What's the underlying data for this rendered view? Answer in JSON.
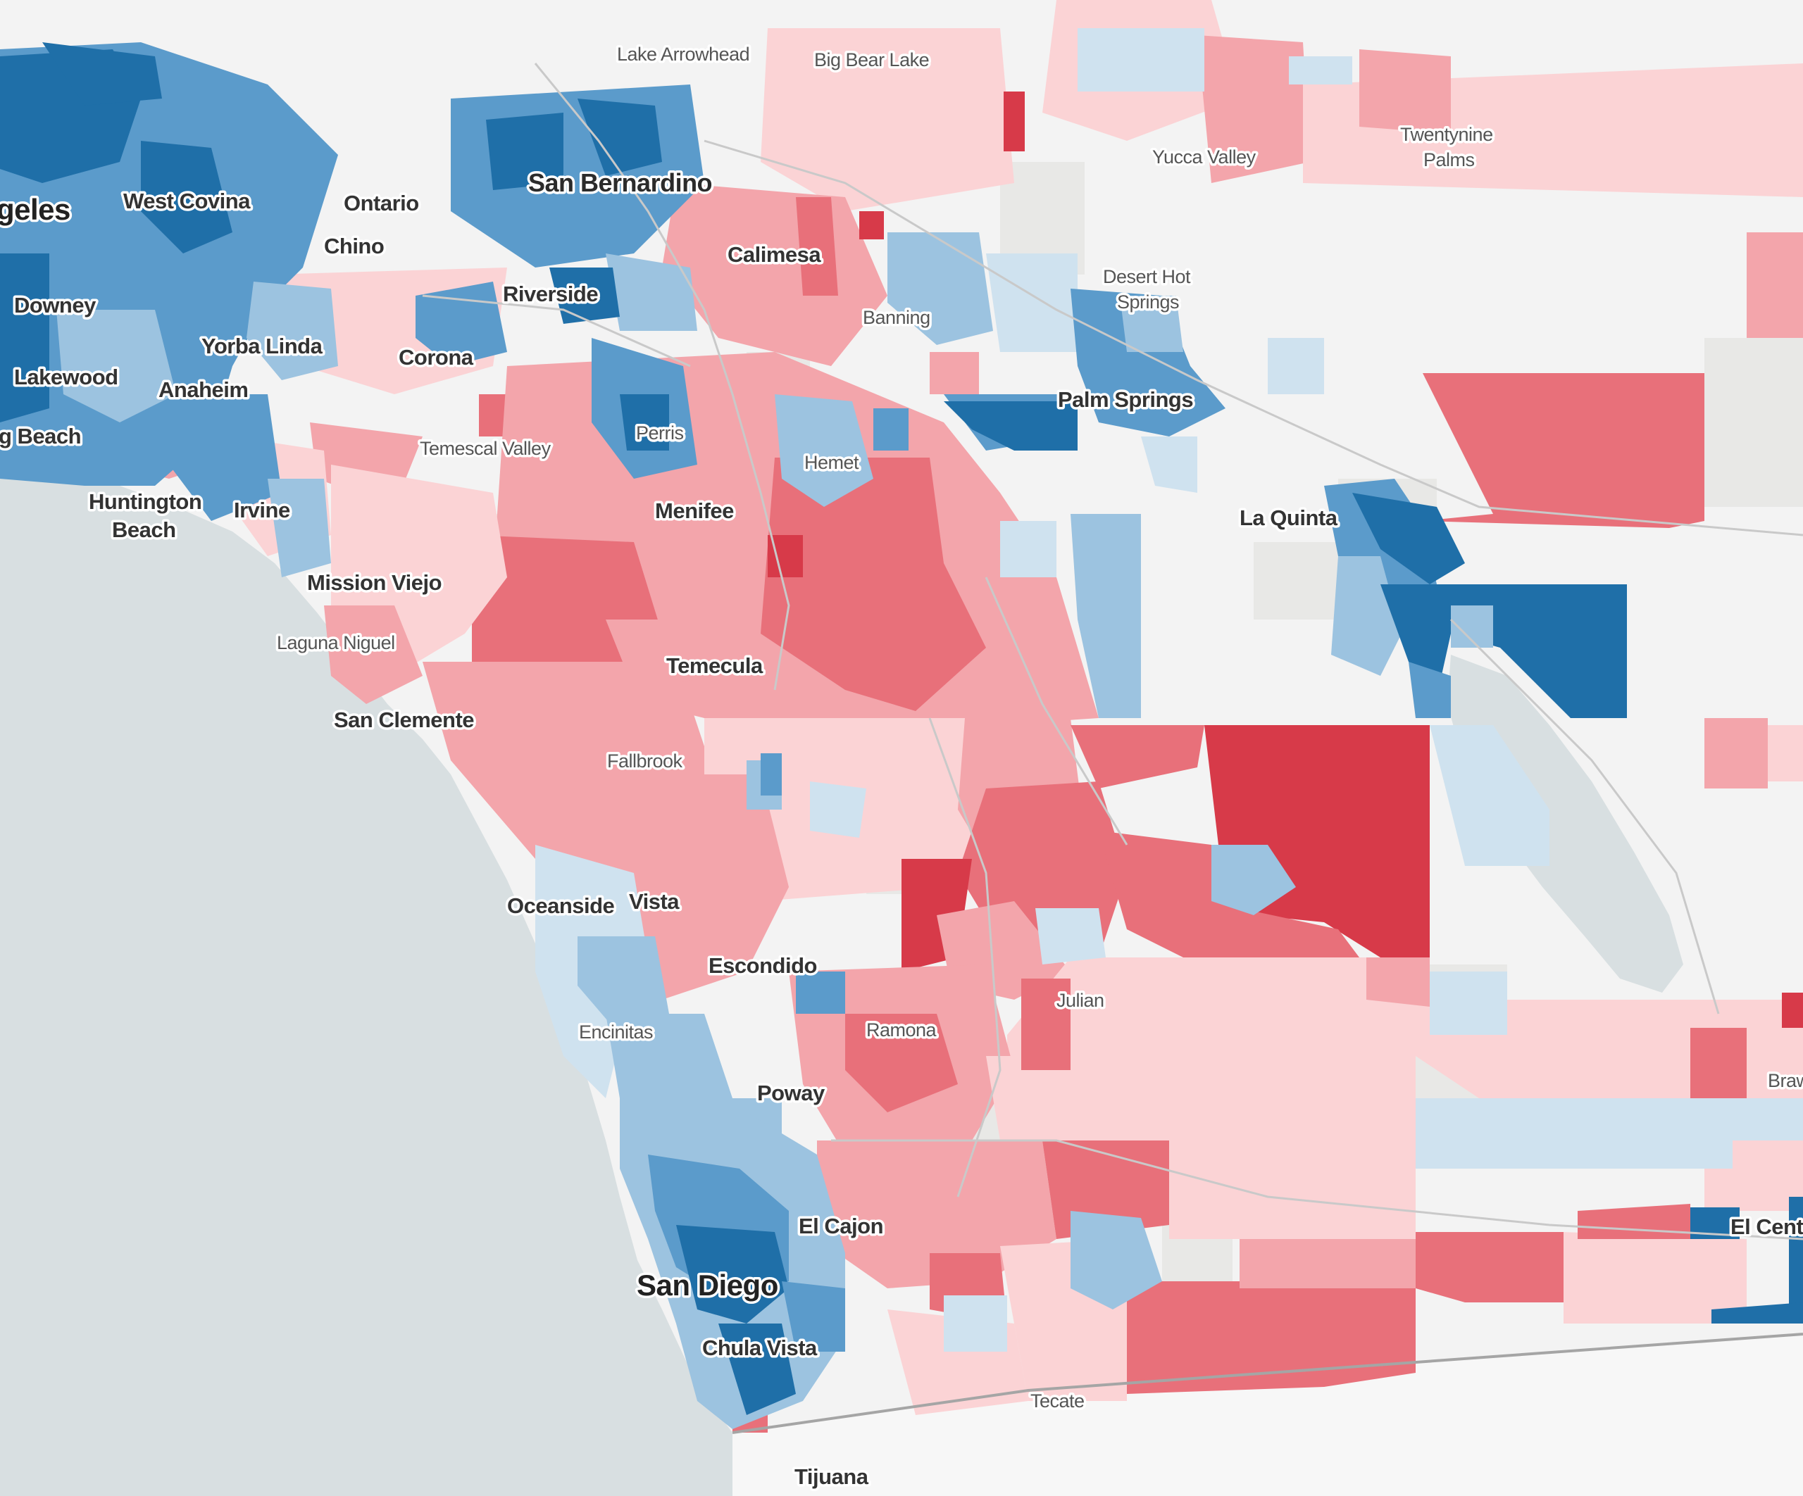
{
  "map": {
    "colors": {
      "ocean": "#d8dfe1",
      "land_no_data": "#f3f3f3",
      "land_gray": "#e8e8e6",
      "mexico": "#f7f7f7",
      "dem_strong": "#1f6fa8",
      "dem_mid": "#5b9bcb",
      "dem_light": "#9cc3e0",
      "dem_faint": "#cfe2ef",
      "rep_strong": "#d73a49",
      "rep_mid": "#e8707a",
      "rep_light": "#f3a5ab",
      "rep_faint": "#fbd3d5",
      "road": "#c9c9c9",
      "border": "#a5a5a5"
    },
    "places": {
      "los_angeles": "geles",
      "west_covina": "West Covina",
      "ontario": "Ontario",
      "chino": "Chino",
      "san_bernardino": "San Bernardino",
      "lake_arrowhead": "Lake Arrowhead",
      "big_bear_lake": "Big Bear Lake",
      "yucca_valley": "Yucca Valley",
      "twentynine_palms_1": "Twentynine",
      "twentynine_palms_2": "Palms",
      "calimesa": "Calimesa",
      "banning": "Banning",
      "desert_hot_springs_1": "Desert Hot",
      "desert_hot_springs_2": "Springs",
      "palm_springs": "Palm Springs",
      "la_quinta": "La Quinta",
      "downey": "Downey",
      "yorba_linda": "Yorba Linda",
      "riverside": "Riverside",
      "corona": "Corona",
      "lakewood": "Lakewood",
      "anaheim": "Anaheim",
      "long_beach": "g Beach",
      "perris": "Perris",
      "temescal_valley": "Temescal Valley",
      "hemet": "Hemet",
      "huntington_beach_1": "Huntington",
      "huntington_beach_2": "Beach",
      "irvine": "Irvine",
      "menifee": "Menifee",
      "mission_viejo": "Mission Viejo",
      "laguna_niguel": "Laguna Niguel",
      "temecula": "Temecula",
      "san_clemente": "San Clemente",
      "fallbrook": "Fallbrook",
      "oceanside": "Oceanside",
      "vista": "Vista",
      "escondido": "Escondido",
      "julian": "Julian",
      "encinitas": "Encinitas",
      "ramona": "Ramona",
      "poway": "Poway",
      "el_cajon": "El Cajon",
      "san_diego": "San Diego",
      "chula_vista": "Chula Vista",
      "tecate": "Tecate",
      "tijuana": "Tijuana",
      "brawley": "Braw",
      "el_centro": "El Cent"
    }
  }
}
